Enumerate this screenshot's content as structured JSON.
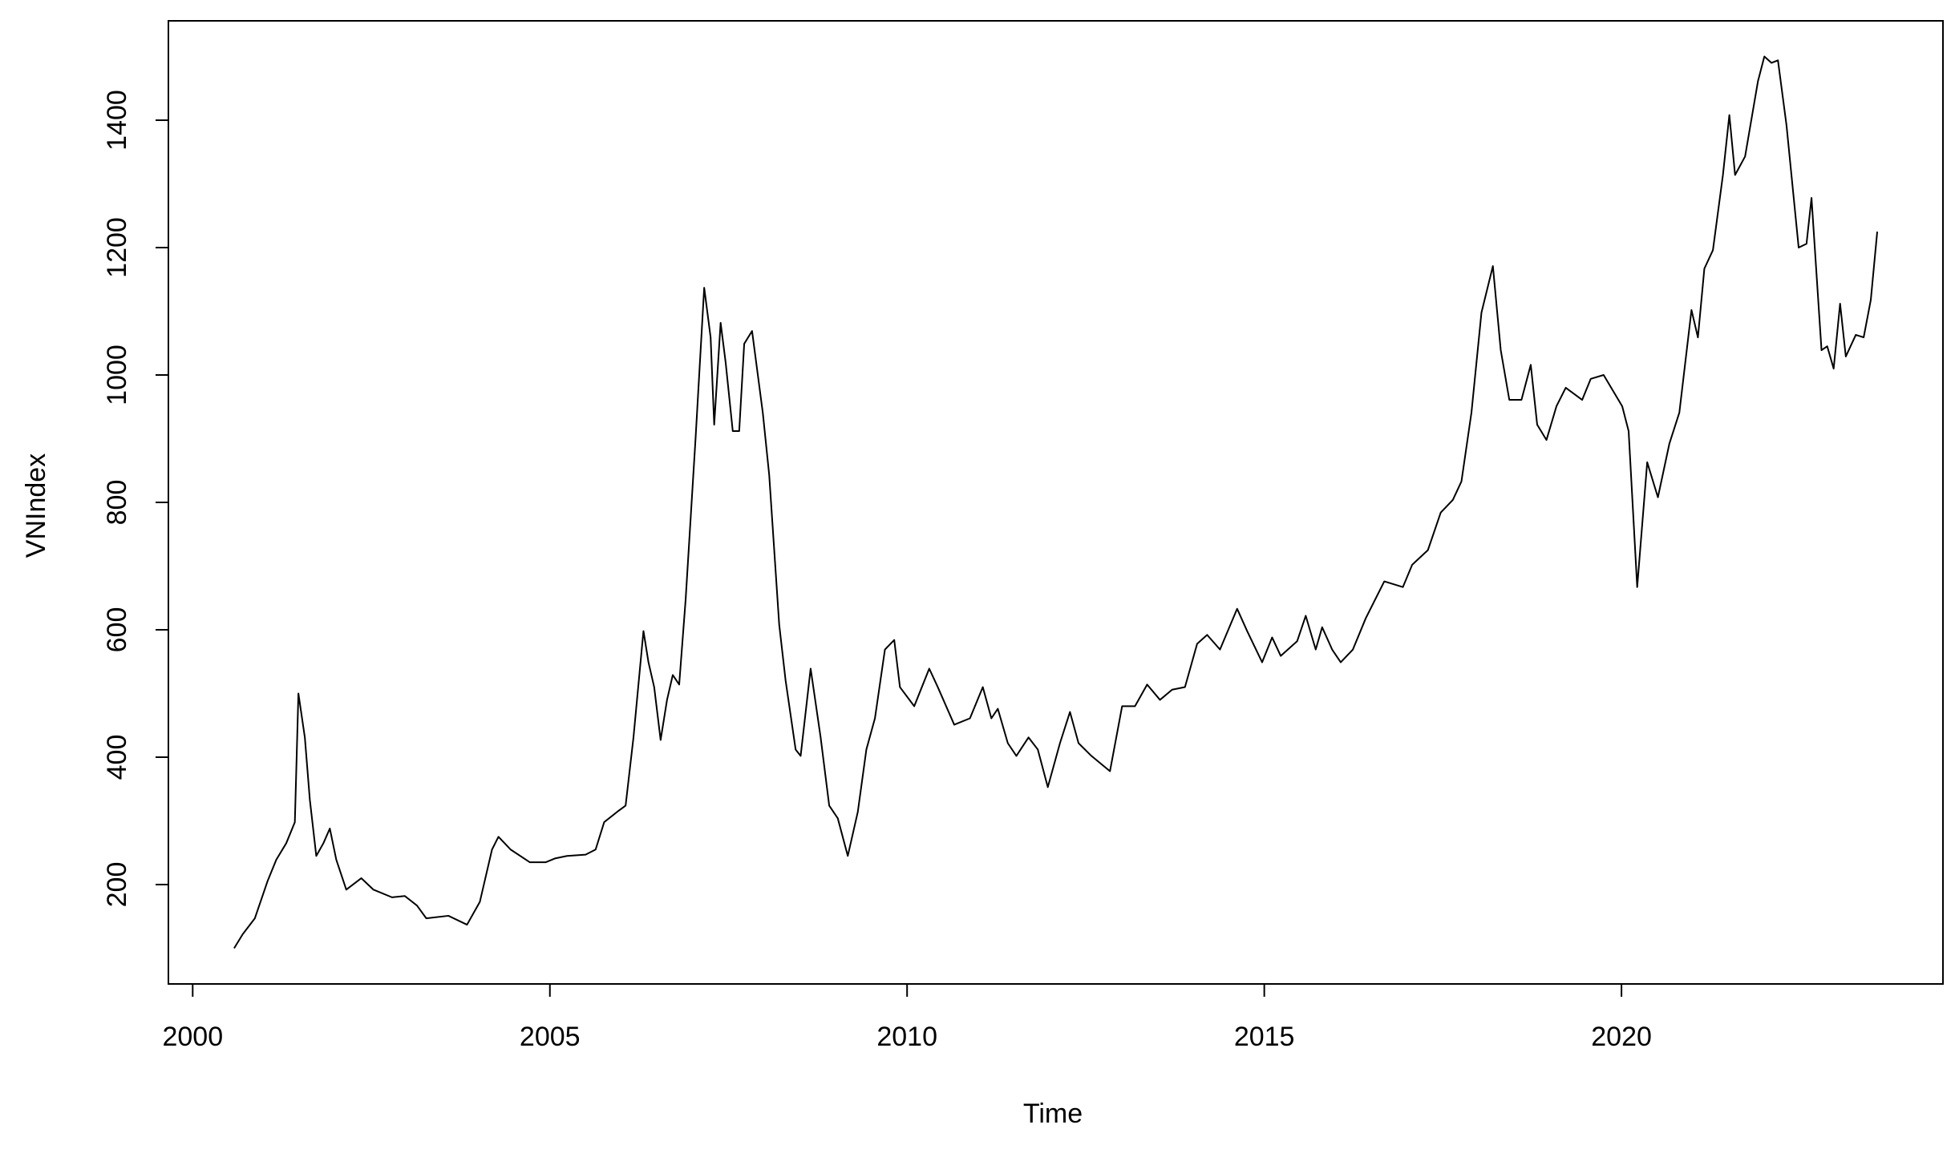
{
  "chart_data": {
    "type": "line",
    "x_label": "Time",
    "y_label": "VNIndex",
    "color": "#000000",
    "xlim": [
      1999.66,
      2024.5
    ],
    "ylim": [
      44,
      1556
    ],
    "xticks": [
      2000,
      2005,
      2010,
      2015,
      2020
    ],
    "yticks": [
      200,
      400,
      600,
      800,
      1000,
      1200,
      1400
    ],
    "x": [
      2000.58,
      2000.7,
      2000.87,
      2001.05,
      2001.17,
      2001.31,
      2001.43,
      2001.48,
      2001.57,
      2001.64,
      2001.73,
      2001.83,
      2001.92,
      2002.01,
      2002.15,
      2002.36,
      2002.53,
      2002.79,
      2002.97,
      2003.14,
      2003.27,
      2003.58,
      2003.84,
      2004.02,
      2004.19,
      2004.28,
      2004.45,
      2004.72,
      2004.94,
      2005.07,
      2005.24,
      2005.5,
      2005.64,
      2005.76,
      2005.94,
      2006.06,
      2006.17,
      2006.31,
      2006.38,
      2006.46,
      2006.55,
      2006.64,
      2006.72,
      2006.81,
      2006.9,
      2007.04,
      2007.16,
      2007.25,
      2007.3,
      2007.39,
      2007.46,
      2007.56,
      2007.65,
      2007.72,
      2007.83,
      2007.98,
      2008.07,
      2008.21,
      2008.3,
      2008.44,
      2008.51,
      2008.65,
      2008.79,
      2008.91,
      2009.03,
      2009.17,
      2009.31,
      2009.43,
      2009.55,
      2009.69,
      2009.82,
      2009.9,
      2010.1,
      2010.31,
      2010.43,
      2010.66,
      2010.88,
      2011.06,
      2011.18,
      2011.27,
      2011.41,
      2011.53,
      2011.7,
      2011.83,
      2011.97,
      2012.14,
      2012.28,
      2012.4,
      2012.58,
      2012.84,
      2013.01,
      2013.19,
      2013.36,
      2013.54,
      2013.71,
      2013.89,
      2014.06,
      2014.2,
      2014.38,
      2014.62,
      2014.76,
      2014.97,
      2015.11,
      2015.23,
      2015.46,
      2015.58,
      2015.72,
      2015.81,
      2015.95,
      2016.07,
      2016.24,
      2016.42,
      2016.68,
      2016.94,
      2017.07,
      2017.29,
      2017.47,
      2017.64,
      2017.76,
      2017.9,
      2018.04,
      2018.2,
      2018.31,
      2018.43,
      2018.6,
      2018.73,
      2018.82,
      2018.95,
      2019.09,
      2019.22,
      2019.45,
      2019.57,
      2019.75,
      2020.01,
      2020.1,
      2020.22,
      2020.36,
      2020.51,
      2020.67,
      2020.81,
      2020.98,
      2021.07,
      2021.16,
      2021.28,
      2021.42,
      2021.51,
      2021.59,
      2021.73,
      2021.91,
      2022.0,
      2022.1,
      2022.19,
      2022.31,
      2022.48,
      2022.59,
      2022.66,
      2022.8,
      2022.88,
      2022.97,
      2023.06,
      2023.14,
      2023.28,
      2023.39,
      2023.49,
      2023.58
    ],
    "values": [
      100,
      122,
      147,
      206,
      239,
      265,
      298,
      500,
      431,
      333,
      245,
      265,
      288,
      239,
      192,
      210,
      192,
      180,
      182,
      167,
      147,
      151,
      137,
      173,
      255,
      275,
      255,
      235,
      235,
      241,
      245,
      247,
      255,
      298,
      314,
      324,
      431,
      598,
      549,
      510,
      427,
      490,
      529,
      514,
      647,
      902,
      1137,
      1059,
      922,
      1082,
      1020,
      912,
      912,
      1049,
      1069,
      941,
      843,
      608,
      520,
      412,
      402,
      539,
      431,
      324,
      304,
      245,
      314,
      412,
      461,
      569,
      584,
      510,
      480,
      539,
      510,
      451,
      461,
      510,
      461,
      476,
      422,
      402,
      431,
      412,
      353,
      422,
      471,
      422,
      402,
      378,
      480,
      480,
      514,
      490,
      506,
      510,
      578,
      592,
      569,
      633,
      598,
      549,
      588,
      559,
      582,
      622,
      569,
      604,
      569,
      549,
      569,
      618,
      676,
      667,
      702,
      725,
      784,
      804,
      833,
      941,
      1098,
      1171,
      1039,
      961,
      961,
      1016,
      922,
      898,
      951,
      980,
      961,
      994,
      1000,
      951,
      912,
      667,
      863,
      808,
      892,
      941,
      1102,
      1059,
      1167,
      1196,
      1314,
      1408,
      1314,
      1343,
      1461,
      1500,
      1490,
      1494,
      1392,
      1200,
      1206,
      1278,
      1039,
      1045,
      1010,
      1112,
      1029,
      1063,
      1059,
      1118,
      1225
    ]
  }
}
